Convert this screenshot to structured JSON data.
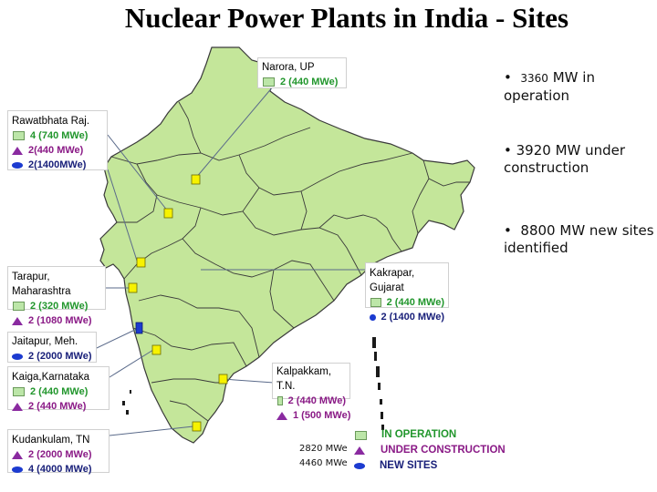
{
  "title": "Nuclear Power Plants in India - Sites",
  "bullets": [
    {
      "bullet": "•",
      "num": "3360",
      "text": "MW in operation"
    },
    {
      "bullet": "•",
      "num": "3920",
      "text": "MW under construction"
    },
    {
      "bullet": "•",
      "num": "8800",
      "text": "MW new sites identified"
    }
  ],
  "sites": {
    "narora": {
      "name": "Narora, UP",
      "lines": [
        "2 (440 MWe)"
      ]
    },
    "rawatbhata": {
      "name": "Rawatbhata Raj.",
      "lines": [
        "4 (740 MWe)",
        "2(440 MWe)",
        "2(1400MWe)"
      ]
    },
    "tarapur": {
      "name": "Tarapur, Maharashtra",
      "lines": [
        "2 (320 MWe)",
        "2 (1080 MWe)"
      ]
    },
    "jaitapur": {
      "name": "Jaitapur, Meh.",
      "lines": [
        "2 (2000 MWe)"
      ]
    },
    "kaiga": {
      "name": "Kaiga,Karnataka",
      "lines": [
        "2 (440 MWe)",
        "2 (440 MWe)"
      ]
    },
    "kudankulam": {
      "name": "Kudankulam, TN",
      "lines": [
        "2 (2000 MWe)",
        "4 (4000 MWe)"
      ]
    },
    "kakrapar": {
      "name": "Kakrapar, Gujarat",
      "lines": [
        "2 (440 MWe)",
        "2 (1400 MWe)"
      ]
    },
    "kalpakkam": {
      "name": "Kalpakkam, T.N.",
      "lines": [
        "2 (440 MWe)",
        "1 (500 MWe)"
      ]
    }
  },
  "legend": {
    "operation": "IN OPERATION",
    "construction": "UNDER CONSTRUCTION",
    "new": "NEW SITES",
    "total_construction": "2820 MWe",
    "total_new": "4460 MWe"
  },
  "colors": {
    "land": "#c4e69a",
    "sea_boundary": "#3a3a3a",
    "operation": "#21962c",
    "construction": "#8a1a86",
    "new": "#19207a",
    "marker_yellow": "#f7f200",
    "marker_blue": "#1c3bd0"
  }
}
